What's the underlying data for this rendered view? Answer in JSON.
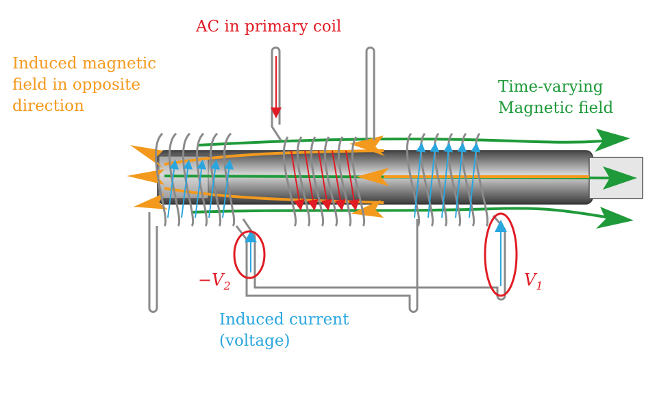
{
  "labels": {
    "primary_ac": "AC in primary coil",
    "induced_field": [
      "Induced magnetic",
      "field in opposite",
      "direction"
    ],
    "time_varying": [
      "Time-varying",
      "Magnetic field"
    ],
    "induced_current": [
      "Induced current",
      "(voltage)"
    ],
    "v1": {
      "prefix": "",
      "symbol": "V",
      "sub": "1"
    },
    "v2": {
      "prefix": "−",
      "symbol": "V",
      "sub": "2"
    }
  },
  "colors": {
    "primary_current": "#e01b24",
    "induced_field": "#f39a1e",
    "time_varying_field": "#1f9a3a",
    "induced_current": "#2aa6df",
    "wire": "#8a8a8a",
    "core_dark": "#555555",
    "core_light": "#cfcfcf"
  }
}
